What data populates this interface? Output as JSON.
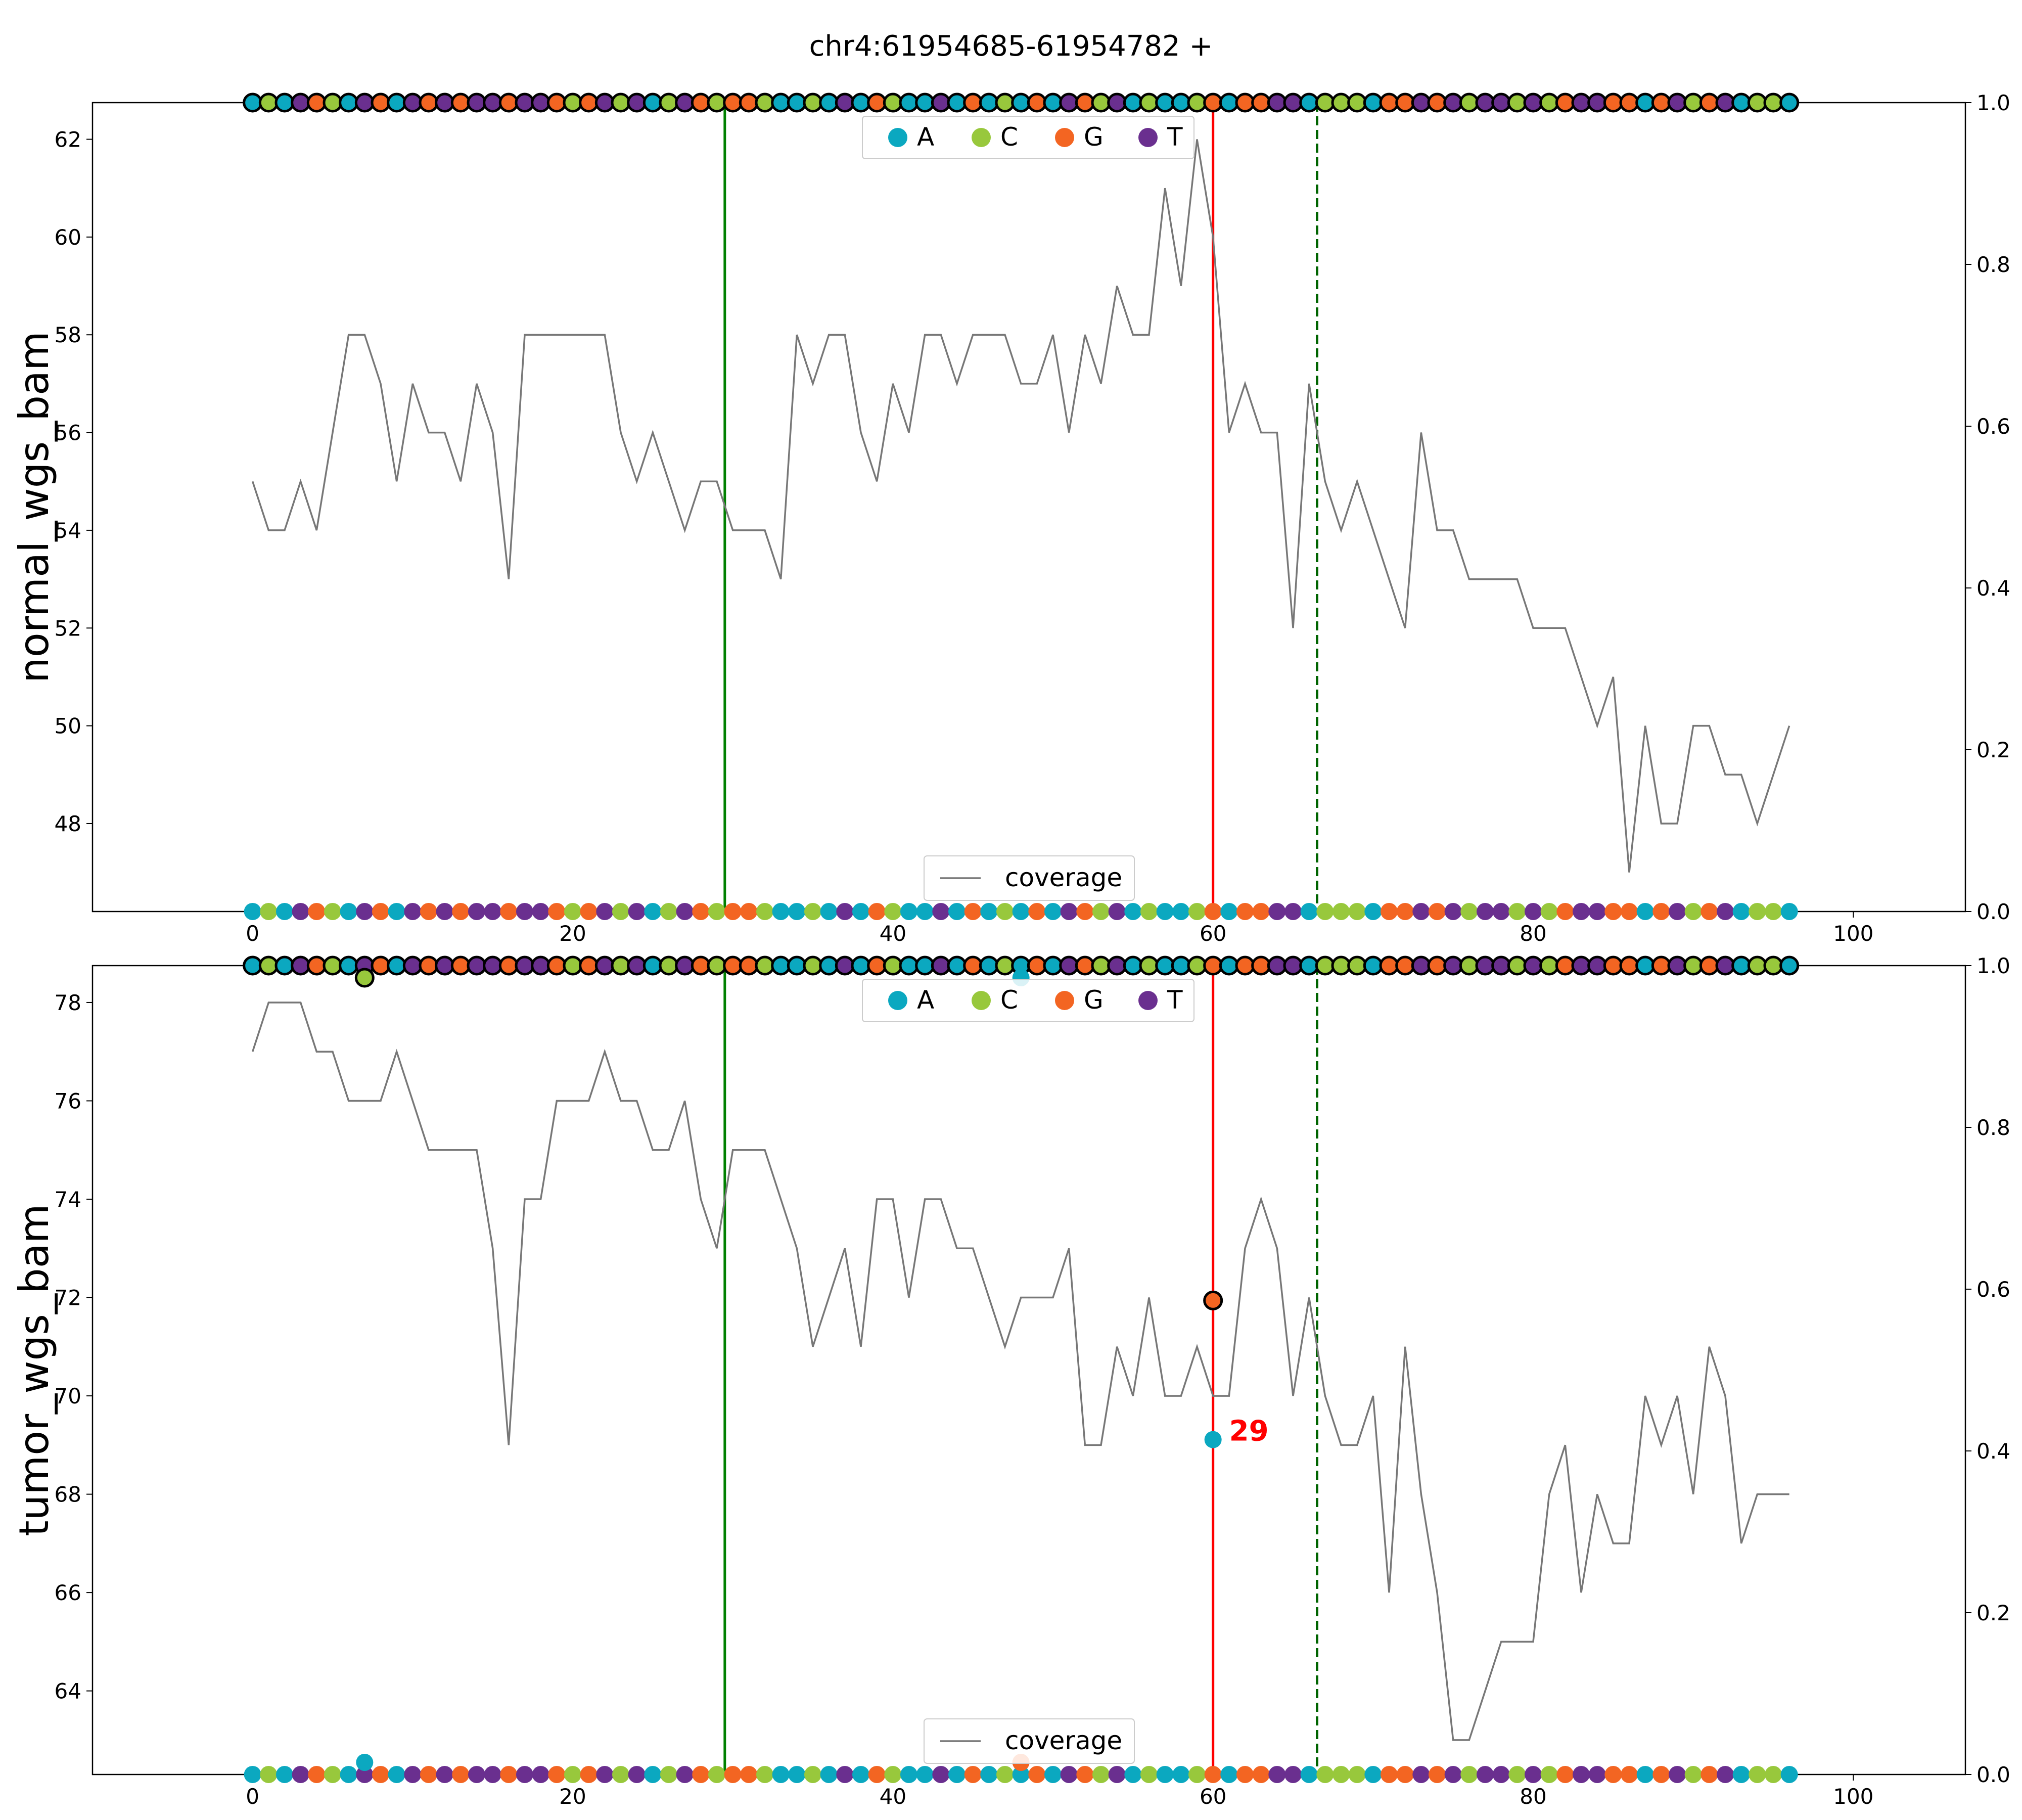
{
  "chart_data": {
    "type": "line",
    "title": "chr4:61954685-61954782 +",
    "base_colors": {
      "A": "#0ba8c0",
      "C": "#98c83c",
      "G": "#f36522",
      "T": "#6a2f8f"
    },
    "base_order": [
      "A",
      "C",
      "G",
      "T"
    ],
    "coverage_color": "#777777",
    "xlim": [
      -10,
      107
    ],
    "xticks": [
      0,
      20,
      40,
      60,
      80,
      100
    ],
    "right_yticks": [
      0.0,
      0.2,
      0.4,
      0.6,
      0.8,
      1.0
    ],
    "vlines": [
      {
        "x": 29.5,
        "color": "#008000",
        "style": "solid"
      },
      {
        "x": 60,
        "color": "#ff0000",
        "style": "solid"
      },
      {
        "x": 66.5,
        "color": "#006400",
        "style": "dashed"
      }
    ],
    "reference_sequence": "ACATGCATGATGTGTTGTTGCGTCTACTGCGGCAACATAGCAATAGACAGATGCTACAACGAGGTTACCCAGGTGTCTTCTCGTTGGAGTCGTACCA",
    "top_legend": [
      "A",
      "C",
      "G",
      "T"
    ],
    "bottom_legend": "coverage",
    "panels": [
      {
        "ylabel": "normal_wgs_bam",
        "ylim": [
          46.2,
          62.75
        ],
        "yticks": [
          48,
          50,
          52,
          54,
          56,
          58,
          60,
          62
        ],
        "coverage": [
          55,
          54,
          54,
          55,
          54,
          56,
          58,
          58,
          57,
          55,
          57,
          56,
          56,
          55,
          57,
          56,
          53,
          58,
          58,
          58,
          58,
          58,
          58,
          56,
          55,
          56,
          55,
          54,
          55,
          55,
          54,
          54,
          54,
          53,
          58,
          57,
          58,
          58,
          56,
          55,
          57,
          56,
          58,
          58,
          57,
          58,
          58,
          58,
          57,
          57,
          58,
          56,
          58,
          57,
          59,
          58,
          58,
          61,
          59,
          62,
          60,
          56,
          57,
          56,
          56,
          52,
          57,
          55,
          54,
          55,
          54,
          53,
          52,
          56,
          54,
          54,
          53,
          53,
          53,
          53,
          52,
          52,
          52,
          51,
          50,
          51,
          47,
          50,
          48,
          48,
          50,
          50,
          49,
          49,
          48,
          49,
          50
        ],
        "variant_points": [],
        "annotations": []
      },
      {
        "ylabel": "tumor_wgs_bam",
        "ylim": [
          62.3,
          78.75
        ],
        "yticks": [
          64,
          66,
          68,
          70,
          72,
          74,
          76,
          78
        ],
        "coverage": [
          77,
          78,
          78,
          78,
          77,
          77,
          76,
          76,
          76,
          77,
          76,
          75,
          75,
          75,
          75,
          73,
          69,
          74,
          74,
          76,
          76,
          76,
          77,
          76,
          76,
          75,
          75,
          76,
          74,
          73,
          75,
          75,
          75,
          74,
          73,
          71,
          72,
          73,
          71,
          74,
          74,
          72,
          74,
          74,
          73,
          73,
          72,
          71,
          72,
          72,
          72,
          73,
          69,
          69,
          71,
          70,
          72,
          70,
          70,
          71,
          70,
          70,
          73,
          74,
          73,
          70,
          72,
          70,
          69,
          69,
          70,
          66,
          71,
          68,
          66,
          63,
          63,
          64,
          65,
          65,
          65,
          68,
          69,
          66,
          68,
          67,
          67,
          70,
          69,
          70,
          68,
          71,
          70,
          67,
          68,
          68,
          68
        ],
        "variant_points": [
          {
            "x": 7,
            "frac": 0.985,
            "base": "C",
            "outlined": true
          },
          {
            "x": 7,
            "frac": 0.015,
            "base": "A",
            "outlined": false
          },
          {
            "x": 48,
            "frac": 0.985,
            "base": "A",
            "outlined": false
          },
          {
            "x": 48,
            "frac": 0.015,
            "base": "G",
            "outlined": false
          },
          {
            "x": 60,
            "frac": 0.586,
            "base": "G",
            "outlined": true
          },
          {
            "x": 60,
            "frac": 0.414,
            "base": "A",
            "outlined": false
          }
        ],
        "annotations": [
          {
            "x": 60,
            "frac": 0.414,
            "text": "29"
          }
        ]
      }
    ]
  }
}
